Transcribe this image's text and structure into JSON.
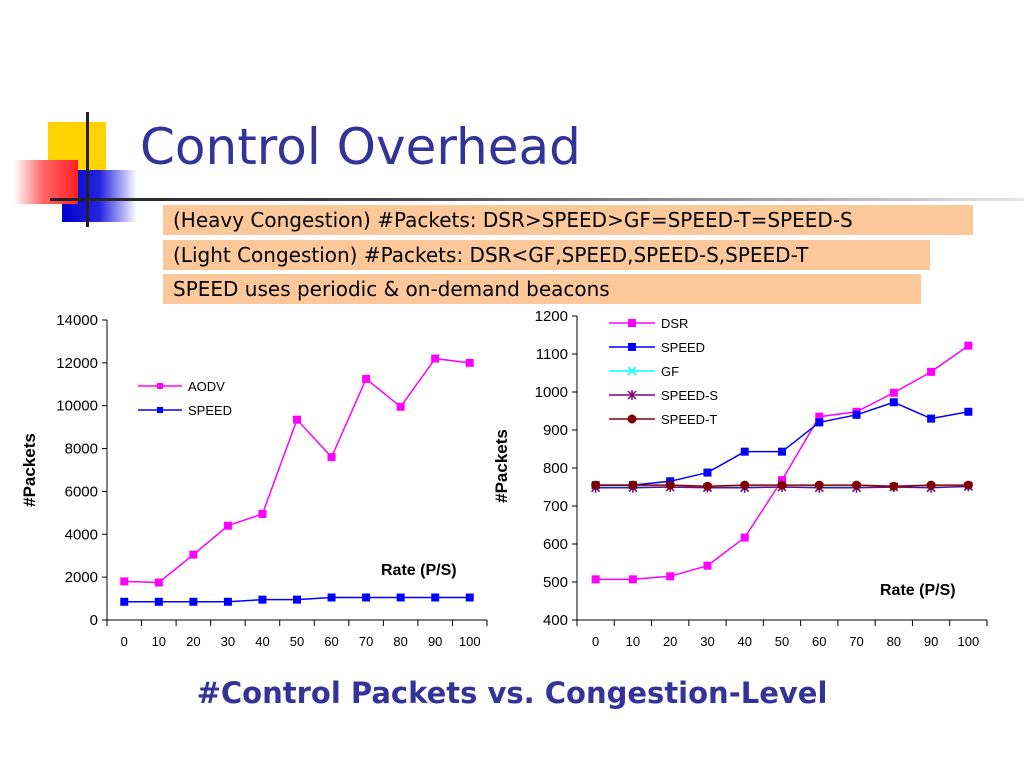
{
  "slide": {
    "title": "Control Overhead",
    "bullets": [
      "(Heavy Congestion) #Packets: DSR>SPEED>GF=SPEED-T=SPEED-S",
      "(Light Congestion) #Packets: DSR<GF,SPEED,SPEED-S,SPEED-T",
      "SPEED uses periodic & on-demand beacons"
    ],
    "caption": "#Control Packets vs. Congestion-Level"
  },
  "chart_data": [
    {
      "type": "line",
      "ylabel": "#Packets",
      "xlabel": "Rate (P/S)",
      "categories": [
        "0",
        "10",
        "20",
        "30",
        "40",
        "50",
        "60",
        "70",
        "80",
        "90",
        "100"
      ],
      "ylim": [
        0,
        14000
      ],
      "yticks": [
        0,
        2000,
        4000,
        6000,
        8000,
        10000,
        12000,
        14000
      ],
      "grid": false,
      "legend": "top-left",
      "series": [
        {
          "name": "AODV",
          "color": "#ff00ff",
          "marker": "square",
          "values": [
            1800,
            1750,
            3050,
            4400,
            4950,
            9350,
            7600,
            11250,
            9950,
            12200,
            12000
          ]
        },
        {
          "name": "SPEED",
          "color": "#0000ff",
          "marker": "square",
          "values": [
            850,
            850,
            850,
            850,
            950,
            950,
            1050,
            1050,
            1050,
            1050,
            1050
          ]
        }
      ]
    },
    {
      "type": "line",
      "ylabel": "#Packets",
      "xlabel": "Rate (P/S)",
      "categories": [
        "0",
        "10",
        "20",
        "30",
        "40",
        "50",
        "60",
        "70",
        "80",
        "90",
        "100"
      ],
      "ylim": [
        400,
        1200
      ],
      "yticks": [
        400,
        500,
        600,
        700,
        800,
        900,
        1000,
        1100,
        1200
      ],
      "grid": false,
      "legend": "top-left",
      "series": [
        {
          "name": "DSR",
          "color": "#ff00ff",
          "marker": "square",
          "values": [
            507,
            507,
            515,
            543,
            617,
            768,
            935,
            948,
            998,
            1053,
            1122
          ]
        },
        {
          "name": "SPEED",
          "color": "#0000ff",
          "marker": "square",
          "values": [
            755,
            755,
            765,
            788,
            843,
            843,
            920,
            940,
            973,
            930,
            948
          ]
        },
        {
          "name": "GF",
          "color": "#00ffff",
          "marker": "x",
          "values": [
            750,
            750,
            750,
            750,
            750,
            750,
            750,
            750,
            750,
            750,
            750
          ]
        },
        {
          "name": "SPEED-S",
          "color": "#800080",
          "marker": "star",
          "values": [
            748,
            748,
            750,
            748,
            748,
            750,
            748,
            748,
            750,
            748,
            752
          ]
        },
        {
          "name": "SPEED-T",
          "color": "#800000",
          "marker": "circle",
          "values": [
            755,
            755,
            755,
            752,
            755,
            755,
            755,
            755,
            752,
            755,
            755
          ]
        }
      ]
    }
  ]
}
